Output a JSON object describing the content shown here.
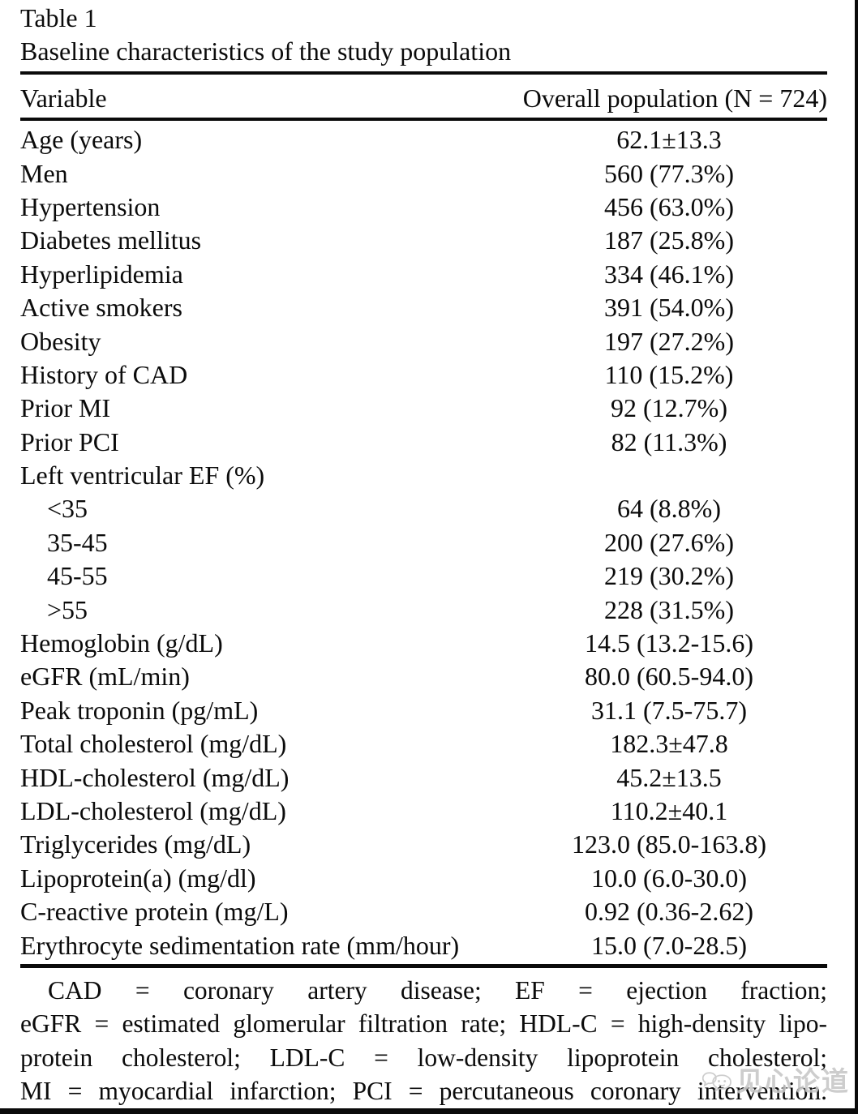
{
  "table": {
    "label": "Table 1",
    "caption": "Baseline characteristics of the study population",
    "columns": {
      "variable": "Variable",
      "value": "Overall population (N = 724)"
    },
    "rows": [
      {
        "variable": "Age (years)",
        "value": "62.1±13.3",
        "indent": false
      },
      {
        "variable": "Men",
        "value": "560 (77.3%)",
        "indent": false
      },
      {
        "variable": "Hypertension",
        "value": "456 (63.0%)",
        "indent": false
      },
      {
        "variable": "Diabetes mellitus",
        "value": "187 (25.8%)",
        "indent": false
      },
      {
        "variable": "Hyperlipidemia",
        "value": "334 (46.1%)",
        "indent": false
      },
      {
        "variable": "Active smokers",
        "value": "391 (54.0%)",
        "indent": false
      },
      {
        "variable": "Obesity",
        "value": "197 (27.2%)",
        "indent": false
      },
      {
        "variable": "History of CAD",
        "value": "110 (15.2%)",
        "indent": false
      },
      {
        "variable": "Prior MI",
        "value": "92 (12.7%)",
        "indent": false
      },
      {
        "variable": "Prior PCI",
        "value": "82 (11.3%)",
        "indent": false
      },
      {
        "variable": "Left ventricular EF (%)",
        "value": "",
        "indent": false
      },
      {
        "variable": "<35",
        "value": "64 (8.8%)",
        "indent": true
      },
      {
        "variable": "35-45",
        "value": "200 (27.6%)",
        "indent": true
      },
      {
        "variable": "45-55",
        "value": "219 (30.2%)",
        "indent": true
      },
      {
        "variable": ">55",
        "value": "228 (31.5%)",
        "indent": true
      },
      {
        "variable": "Hemoglobin (g/dL)",
        "value": "14.5 (13.2-15.6)",
        "indent": false
      },
      {
        "variable": "eGFR (mL/min)",
        "value": "80.0 (60.5-94.0)",
        "indent": false
      },
      {
        "variable": "Peak troponin (pg/mL)",
        "value": "31.1 (7.5-75.7)",
        "indent": false
      },
      {
        "variable": "Total cholesterol (mg/dL)",
        "value": "182.3±47.8",
        "indent": false
      },
      {
        "variable": "HDL-cholesterol (mg/dL)",
        "value": "45.2±13.5",
        "indent": false
      },
      {
        "variable": "LDL-cholesterol (mg/dL)",
        "value": "110.2±40.1",
        "indent": false
      },
      {
        "variable": "Triglycerides (mg/dL)",
        "value": "123.0 (85.0-163.8)",
        "indent": false
      },
      {
        "variable": "Lipoprotein(a) (mg/dl)",
        "value": "10.0 (6.0-30.0)",
        "indent": false
      },
      {
        "variable": "C-reactive protein (mg/L)",
        "value": "0.92 (0.36-2.62)",
        "indent": false
      },
      {
        "variable": "Erythrocyte sedimentation rate (mm/hour)",
        "value": "15.0 (7.0-28.5)",
        "indent": false
      }
    ]
  },
  "footnote": {
    "lines": [
      "CAD = coronary artery disease; EF = ejection fraction;",
      "eGFR = estimated glomerular filtration rate; HDL-C = high-density lipo-",
      "protein cholesterol; LDL-C = low-density lipoprotein cholesterol;",
      "MI = myocardial infarction; PCI = percutaneous coronary intervention."
    ]
  },
  "watermark": {
    "text": "见心论道",
    "icon": "chat-bubbles-face-icon",
    "color": "#c7c7c7"
  }
}
